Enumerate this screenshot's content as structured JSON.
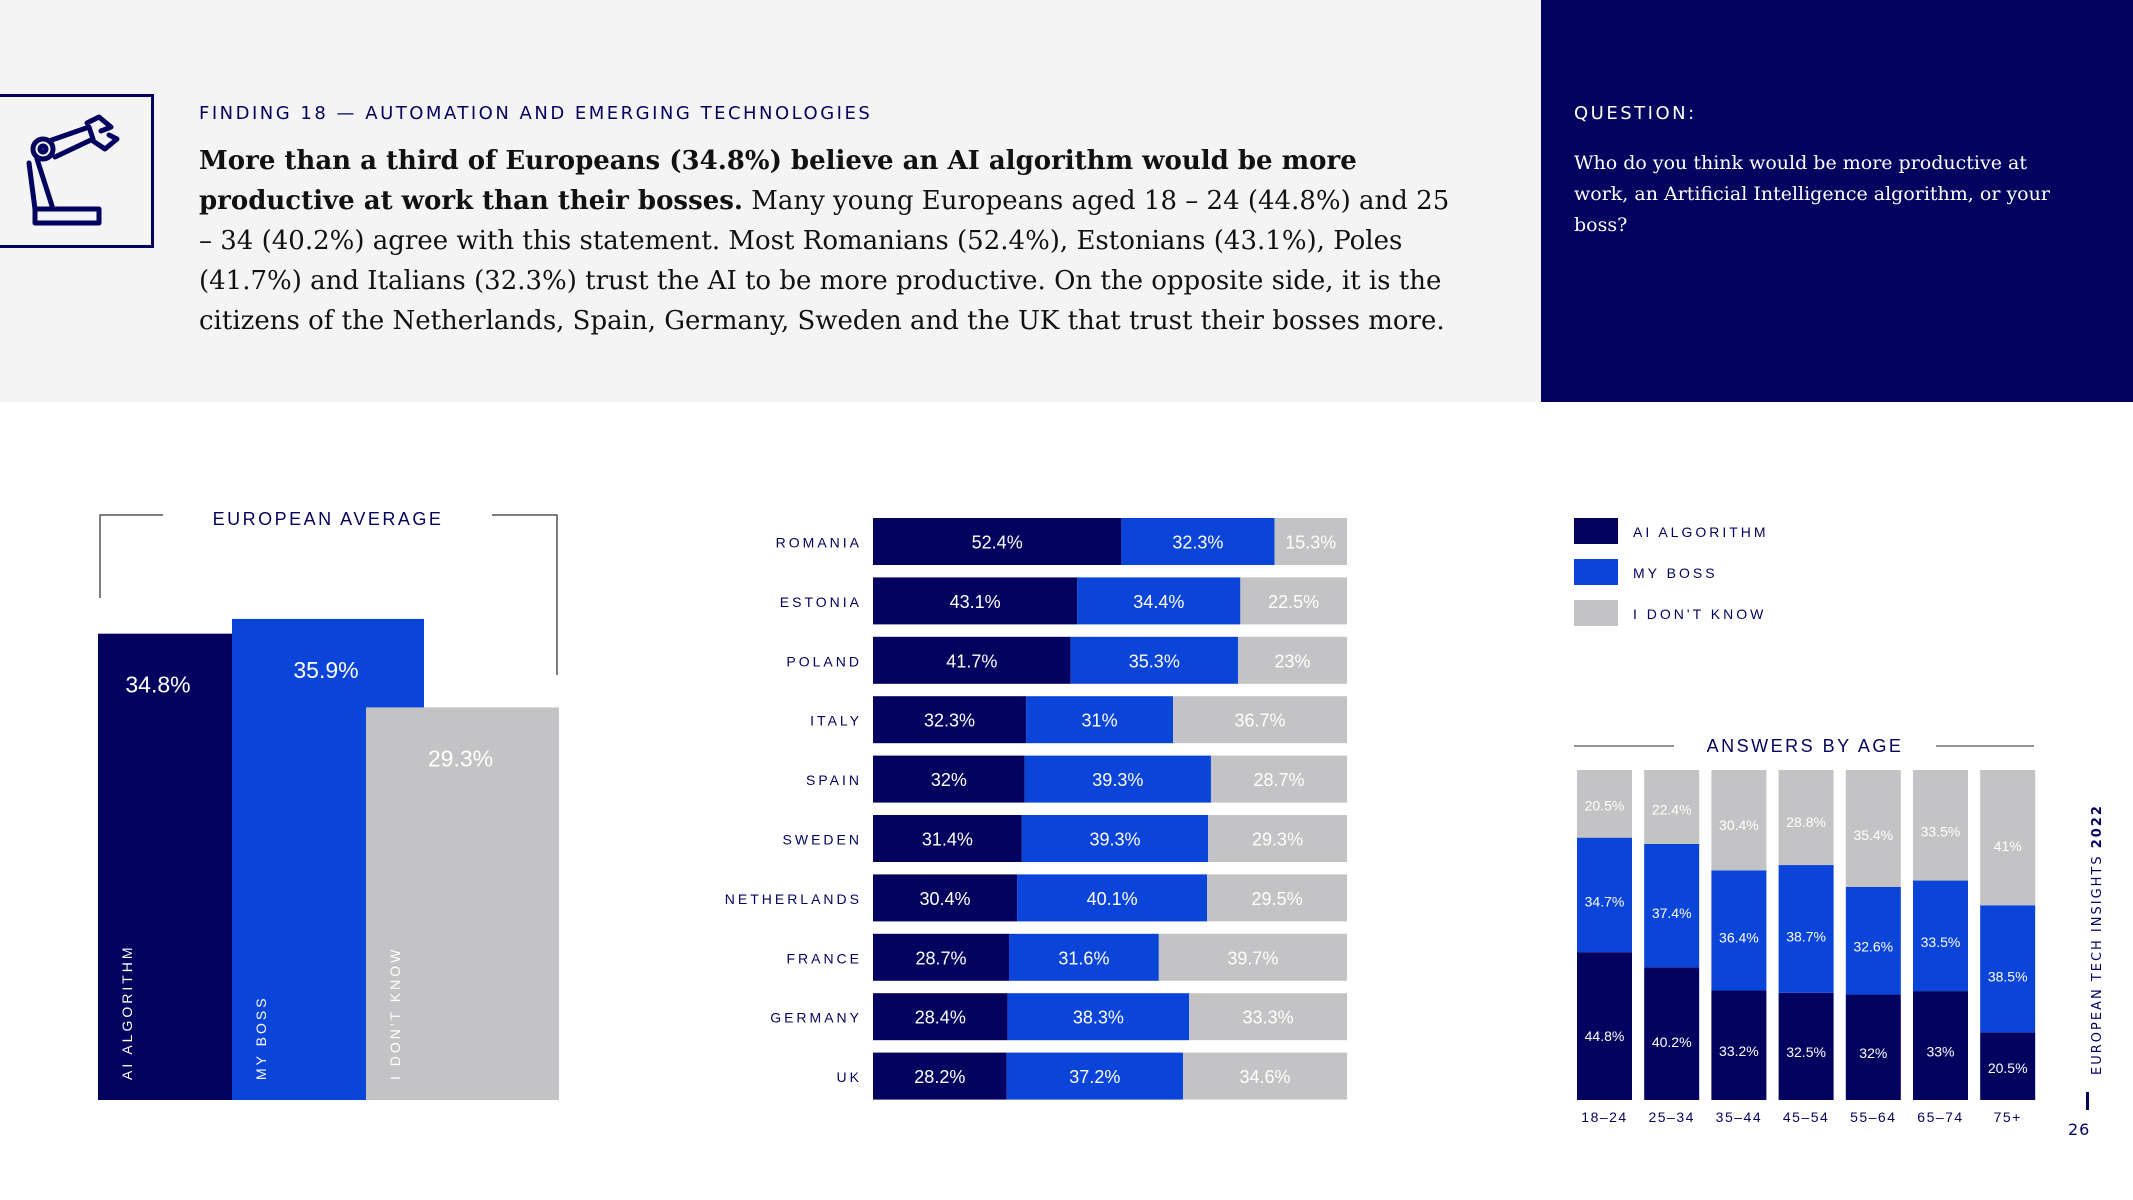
{
  "header": {
    "finding_label": "FINDING 18 — AUTOMATION AND EMERGING TECHNOLOGIES",
    "finding_bold": "More than a third of Europeans (34.8%) believe an AI algorithm would be more productive at work than their bosses.",
    "finding_body": " Many young Europeans aged 18 – 24 (44.8%) and 25 – 34 (40.2%) agree with this statement. Most Romanians (52.4%), Estonians (43.1%), Poles (41.7%) and Italians (32.3%) trust the AI to be more productive. On the opposite side, it is the citizens of the Netherlands, Spain, Germany, Sweden and the UK that trust their bosses more."
  },
  "question": {
    "label": "QUESTION:",
    "text": "Who do you think would be more productive at work, an Artificial Intelligence algorithm, or your boss?"
  },
  "colors": {
    "ai": "#03035f",
    "boss": "#0a44d8",
    "dontknow": "#c3c3c5",
    "header_bg": "#f4f4f4",
    "question_bg": "#03035f"
  },
  "legend": [
    "AI ALGORITHM",
    "MY BOSS",
    "I DON'T KNOW"
  ],
  "footer": {
    "title_regular": "EUROPEAN TECH INSIGHTS ",
    "title_bold": "2022",
    "page": "26"
  },
  "icon": "robotic-arm-icon",
  "chart_data": [
    {
      "type": "bar",
      "title": "EUROPEAN AVERAGE",
      "categories": [
        "AI ALGORITHM",
        "MY BOSS",
        "I DON'T KNOW"
      ],
      "values": [
        34.8,
        35.9,
        29.3
      ],
      "labels": [
        "34.8%",
        "35.9%",
        "29.3%"
      ]
    },
    {
      "type": "bar",
      "orientation": "horizontal",
      "stacked": true,
      "categories": [
        "ROMANIA",
        "ESTONIA",
        "POLAND",
        "ITALY",
        "SPAIN",
        "SWEDEN",
        "NETHERLANDS",
        "FRANCE",
        "GERMANY",
        "UK"
      ],
      "series": [
        {
          "name": "AI ALGORITHM",
          "values": [
            52.4,
            43.1,
            41.7,
            32.3,
            32,
            31.4,
            30.4,
            28.7,
            28.4,
            28.2
          ],
          "labels": [
            "52.4%",
            "43.1%",
            "41.7%",
            "32.3%",
            "32%",
            "31.4%",
            "30.4%",
            "28.7%",
            "28.4%",
            "28.2%"
          ]
        },
        {
          "name": "MY BOSS",
          "values": [
            32.3,
            34.4,
            35.3,
            31,
            39.3,
            39.3,
            40.1,
            31.6,
            38.3,
            37.2
          ],
          "labels": [
            "32.3%",
            "34.4%",
            "35.3%",
            "31%",
            "39.3%",
            "39.3%",
            "40.1%",
            "31.6%",
            "38.3%",
            "37.2%"
          ]
        },
        {
          "name": "I DON'T KNOW",
          "values": [
            15.3,
            22.5,
            23,
            36.7,
            28.7,
            29.3,
            29.5,
            39.7,
            33.3,
            34.6
          ],
          "labels": [
            "15.3%",
            "22.5%",
            "23%",
            "36.7%",
            "28.7%",
            "29.3%",
            "29.5%",
            "39.7%",
            "33.3%",
            "34.6%"
          ]
        }
      ]
    },
    {
      "type": "bar",
      "stacked": true,
      "title": "ANSWERS BY AGE",
      "categories": [
        "18–24",
        "25–34",
        "35–44",
        "45–54",
        "55–64",
        "65–74",
        "75+"
      ],
      "series": [
        {
          "name": "AI ALGORITHM",
          "values": [
            44.8,
            40.2,
            33.2,
            32.5,
            32,
            33,
            20.5
          ],
          "labels": [
            "44.8%",
            "40.2%",
            "33.2%",
            "32.5%",
            "32%",
            "33%",
            "20.5%"
          ]
        },
        {
          "name": "MY BOSS",
          "values": [
            34.7,
            37.4,
            36.4,
            38.7,
            32.6,
            33.5,
            38.5
          ],
          "labels": [
            "34.7%",
            "37.4%",
            "36.4%",
            "38.7%",
            "32.6%",
            "33.5%",
            "38.5%"
          ]
        },
        {
          "name": "I DON'T KNOW",
          "values": [
            20.5,
            22.4,
            30.4,
            28.8,
            35.4,
            33.5,
            41
          ],
          "labels": [
            "20.5%",
            "22.4%",
            "30.4%",
            "28.8%",
            "35.4%",
            "33.5%",
            "41%"
          ]
        }
      ]
    }
  ]
}
